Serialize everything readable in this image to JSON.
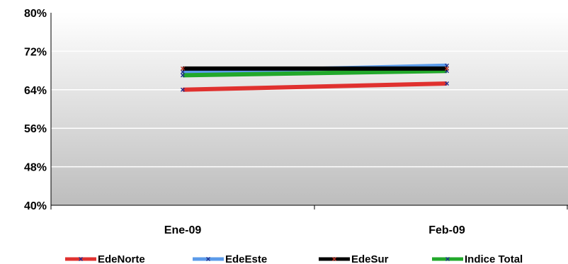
{
  "chart_data": {
    "type": "line",
    "categories": [
      "Ene-09",
      "Feb-09"
    ],
    "ylim": [
      40,
      80
    ],
    "yticks": [
      40,
      48,
      56,
      64,
      72,
      80
    ],
    "ytick_labels": [
      "40%",
      "48%",
      "56%",
      "64%",
      "72%",
      "80%"
    ],
    "grid": true,
    "legend_position": "bottom",
    "series": [
      {
        "name": "EdeNorte",
        "values": [
          64.0,
          65.3
        ],
        "color": "#e0312f",
        "marker_color": "#1f2f8f"
      },
      {
        "name": "EdeEste",
        "values": [
          67.7,
          69.0
        ],
        "color": "#5b9bea",
        "marker_color": "#1f2f8f"
      },
      {
        "name": "EdeSur",
        "values": [
          68.4,
          68.4
        ],
        "color": "#000000",
        "marker_color": "#c0392b"
      },
      {
        "name": "Indice Total",
        "values": [
          67.0,
          67.9
        ],
        "color": "#22a82b",
        "marker_color": "#1f2f8f"
      }
    ],
    "draw_order": [
      0,
      1,
      3,
      2
    ],
    "colors": {
      "plot_gradient_top": "#ffffff",
      "plot_gradient_bottom": "#bdbdbd",
      "gridline": "#ffffff",
      "axis": "#000000"
    }
  }
}
